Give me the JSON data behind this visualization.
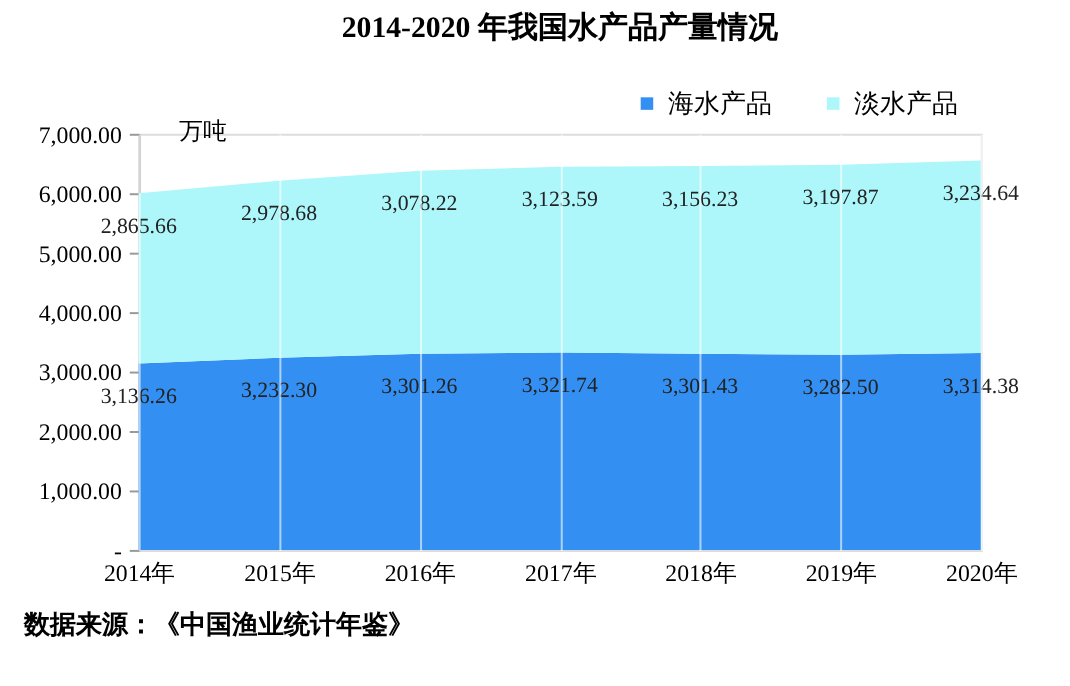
{
  "chart_data": {
    "type": "area",
    "stacked": true,
    "title": "2014-2020 年我国水产品产量情况",
    "ylabel": "万吨",
    "categories": [
      "2014年",
      "2015年",
      "2016年",
      "2017年",
      "2018年",
      "2019年",
      "2020年"
    ],
    "series": [
      {
        "name": "海水产品",
        "color": "#3390f2",
        "values": [
          3136.26,
          3232.3,
          3301.26,
          3321.74,
          3301.43,
          3282.5,
          3314.38
        ],
        "value_labels": [
          "3,136.26",
          "3,232.30",
          "3,301.26",
          "3,321.74",
          "3,301.43",
          "3,282.50",
          "3,314.38"
        ]
      },
      {
        "name": "淡水产品",
        "color": "#adf7fb",
        "values": [
          2865.66,
          2978.68,
          3078.22,
          3123.59,
          3156.23,
          3197.87,
          3234.64
        ],
        "value_labels": [
          "2,865.66",
          "2,978.68",
          "3,078.22",
          "3,123.59",
          "3,156.23",
          "3,197.87",
          "3,234.64"
        ]
      }
    ],
    "ylim": [
      0,
      7000
    ],
    "yticks": [
      {
        "value": 0,
        "label": "-"
      },
      {
        "value": 1000,
        "label": "1,000.00"
      },
      {
        "value": 2000,
        "label": "2,000.00"
      },
      {
        "value": 3000,
        "label": "3,000.00"
      },
      {
        "value": 4000,
        "label": "4,000.00"
      },
      {
        "value": 5000,
        "label": "5,000.00"
      },
      {
        "value": 6000,
        "label": "6,000.00"
      },
      {
        "value": 7000,
        "label": "7,000.00"
      }
    ],
    "grid": "x",
    "legend": "top right",
    "annotations": [
      "数据来源：《中国渔业统计年鉴》"
    ]
  }
}
